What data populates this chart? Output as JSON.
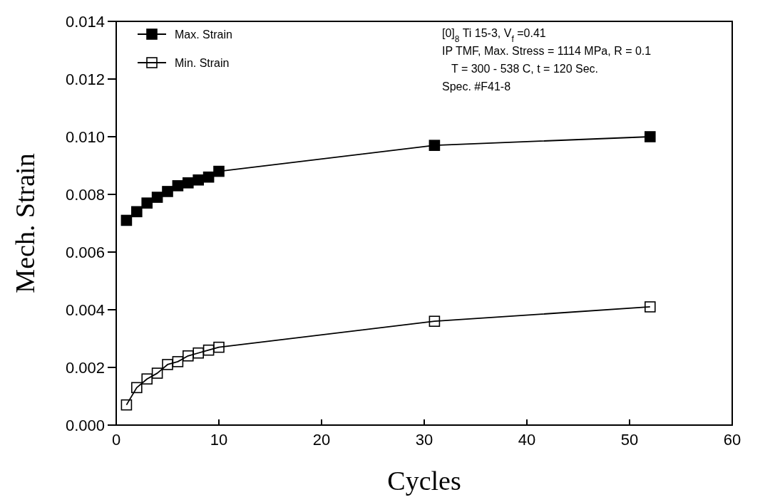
{
  "chart_data": {
    "type": "line",
    "xlabel": "Cycles",
    "ylabel": "Mech. Strain",
    "x": [
      1,
      2,
      3,
      4,
      5,
      6,
      7,
      8,
      9,
      10,
      31,
      52
    ],
    "series": [
      {
        "name": "Max. Strain",
        "color": "#000000",
        "values": [
          0.0071,
          0.0074,
          0.0077,
          0.0079,
          0.0081,
          0.0083,
          0.0084,
          0.0085,
          0.0086,
          0.0088,
          0.0097,
          0.01
        ]
      },
      {
        "name": "Min. Strain",
        "color": "#000000",
        "values": [
          0.0007,
          0.0013,
          0.0016,
          0.0018,
          0.0021,
          0.0022,
          0.0024,
          0.0025,
          0.0026,
          0.0027,
          0.0036,
          0.0041
        ]
      }
    ],
    "xlim": [
      0,
      60
    ],
    "xticks": [
      0,
      10,
      20,
      30,
      40,
      50,
      60
    ],
    "ylim": [
      0,
      0.014
    ],
    "yticks": [
      {
        "value": 0,
        "label": "0.000"
      },
      {
        "value": 0.002,
        "label": "0.002"
      },
      {
        "value": 0.004,
        "label": "0.004"
      },
      {
        "value": 0.006,
        "label": "0.006"
      },
      {
        "value": 0.008,
        "label": "0.008"
      },
      {
        "value": 0.01,
        "label": "0.010"
      },
      {
        "value": 0.012,
        "label": "0.012"
      },
      {
        "value": 0.014,
        "label": "0.014"
      }
    ],
    "marker": "square",
    "line_style": "solid",
    "legend": "top left",
    "grid": false,
    "annotations": [
      "[0]$_{8}$ Ti 15-3, V$_{f}$ =0.41",
      "IP TMF, Max. Stress = 1114 MPa, R = 0.1",
      "T = 300 - 538 C,   t = 120 Sec.",
      "Spec. #F41-8"
    ]
  }
}
